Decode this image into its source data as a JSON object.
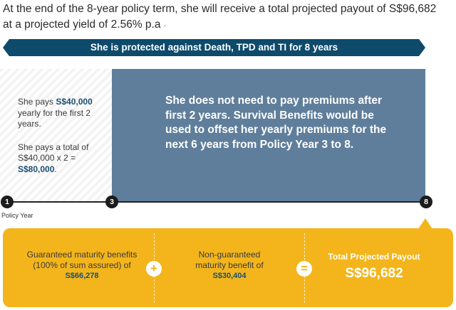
{
  "headline": {
    "line1": "At the end of the 8-year policy term, she will receive a total projected payout of S$96,682",
    "line2": "at a projected yield of 2.56% p.a"
  },
  "banner": {
    "text": "She is protected against Death, TPD and TI for 8 years",
    "color": "#0d4a6b"
  },
  "left_panel": {
    "pays_prefix": "She pays ",
    "pays_amount": "S$40,000",
    "pays_suffix": "yearly for the first 2 years.",
    "total_prefix": "She pays a total of S$40,000 x 2 = ",
    "total_amount": "S$80,000",
    "total_suffix": "."
  },
  "blue_box": {
    "text": "She does not need to pay premiums after first 2 years. Survival Benefits would be used to offset her yearly premiums for the  next 6 years from Policy Year 3 to 8.",
    "color": "#5f7e9b"
  },
  "timeline": {
    "nodes": [
      "1",
      "3",
      "8"
    ],
    "label": "Policy Year"
  },
  "payout": {
    "guaranteed_label": "Guaranteed maturity benefits (100% of sum assured) of",
    "guaranteed_value": "S$66,278",
    "plus": "+",
    "non_guaranteed_label": "Non-guaranteed maturity benefit of",
    "non_guaranteed_value": "S$30,404",
    "equals": "=",
    "total_label": "Total Projected Payout",
    "total_value": "S$96,682",
    "color": "#f3b51b"
  }
}
